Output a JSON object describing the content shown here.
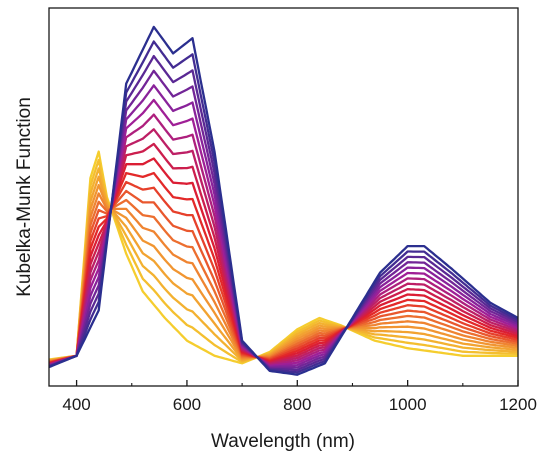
{
  "chart_data": {
    "type": "line",
    "title": "",
    "xlabel": "Wavelength (nm)",
    "ylabel": "Kubelka-Munk Function",
    "xlim": [
      350,
      1200
    ],
    "ylim": [
      0,
      1.0
    ],
    "x_ticks": [
      400,
      600,
      800,
      1000,
      1200
    ],
    "x_tick_labels": [
      "400",
      "600",
      "800",
      "1000",
      "1200"
    ],
    "y_tick_labels_shown": false,
    "grid": false,
    "legend": "none",
    "color_gradient": [
      "#f5cd2e",
      "#f08a32",
      "#e21e28",
      "#9b1f9c",
      "#2b2f8f"
    ],
    "num_series": 20,
    "endpoint_series": [
      {
        "points": [
          [
            350,
            0.07
          ],
          [
            400,
            0.08
          ],
          [
            425,
            0.55
          ],
          [
            440,
            0.62
          ],
          [
            455,
            0.5
          ],
          [
            490,
            0.35
          ],
          [
            520,
            0.25
          ],
          [
            560,
            0.18
          ],
          [
            600,
            0.12
          ],
          [
            650,
            0.08
          ],
          [
            700,
            0.06
          ],
          [
            750,
            0.09
          ],
          [
            800,
            0.15
          ],
          [
            840,
            0.18
          ],
          [
            880,
            0.16
          ],
          [
            940,
            0.12
          ],
          [
            1000,
            0.1
          ],
          [
            1050,
            0.09
          ],
          [
            1100,
            0.08
          ],
          [
            1150,
            0.08
          ],
          [
            1200,
            0.08
          ]
        ]
      },
      {
        "points": [
          [
            350,
            0.05
          ],
          [
            400,
            0.08
          ],
          [
            440,
            0.2
          ],
          [
            490,
            0.8
          ],
          [
            540,
            0.95
          ],
          [
            575,
            0.88
          ],
          [
            610,
            0.92
          ],
          [
            650,
            0.62
          ],
          [
            700,
            0.12
          ],
          [
            750,
            0.04
          ],
          [
            800,
            0.03
          ],
          [
            850,
            0.06
          ],
          [
            900,
            0.18
          ],
          [
            950,
            0.3
          ],
          [
            1000,
            0.37
          ],
          [
            1030,
            0.37
          ],
          [
            1080,
            0.31
          ],
          [
            1150,
            0.22
          ],
          [
            1200,
            0.18
          ]
        ]
      }
    ]
  }
}
